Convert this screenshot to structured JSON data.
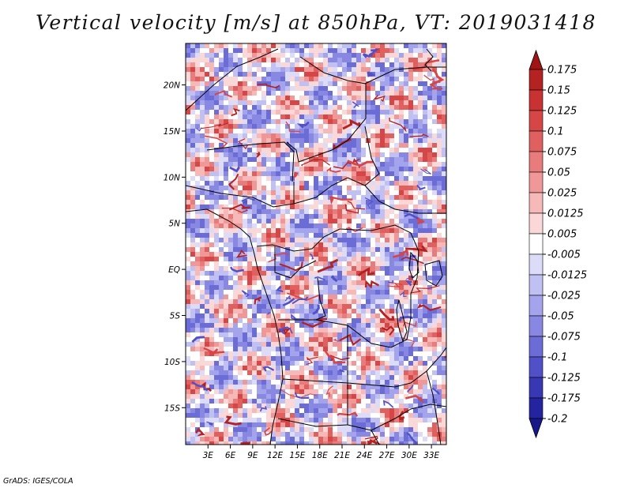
{
  "title": "Vertical velocity [m/s] at 850hPa, VT: 2019031418",
  "credit": "GrADS: IGES/COLA",
  "map": {
    "variable": "vertical velocity",
    "units": "m/s",
    "level": "850hPa",
    "valid_time": "2019031418",
    "lon_range": [
      0,
      35
    ],
    "lat_range": [
      -19,
      24.5
    ],
    "lat_ticks": [
      {
        "lat": 20,
        "label": "20N"
      },
      {
        "lat": 15,
        "label": "15N"
      },
      {
        "lat": 10,
        "label": "10N"
      },
      {
        "lat": 5,
        "label": "5N"
      },
      {
        "lat": 0,
        "label": "EQ"
      },
      {
        "lat": -5,
        "label": "5S"
      },
      {
        "lat": -10,
        "label": "10S"
      },
      {
        "lat": -15,
        "label": "15S"
      }
    ],
    "lon_ticks": [
      {
        "lon": 3,
        "label": "3E"
      },
      {
        "lon": 6,
        "label": "6E"
      },
      {
        "lon": 9,
        "label": "9E"
      },
      {
        "lon": 12,
        "label": "12E"
      },
      {
        "lon": 15,
        "label": "15E"
      },
      {
        "lon": 18,
        "label": "18E"
      },
      {
        "lon": 21,
        "label": "21E"
      },
      {
        "lon": 24,
        "label": "24E"
      },
      {
        "lon": 27,
        "label": "27E"
      },
      {
        "lon": 30,
        "label": "30E"
      },
      {
        "lon": 33,
        "label": "33E"
      }
    ]
  },
  "colorbar": {
    "levels": [
      "0.175",
      "0.15",
      "0.125",
      "0.1",
      "0.075",
      "0.05",
      "0.025",
      "0.0125",
      "0.005",
      "-0.005",
      "-0.0125",
      "-0.025",
      "-0.05",
      "-0.075",
      "-0.1",
      "-0.125",
      "-0.175",
      "-0.2"
    ],
    "colors": [
      "#a01414",
      "#b42222",
      "#c83232",
      "#d74646",
      "#e06060",
      "#e87c7c",
      "#f09898",
      "#f7b8b8",
      "#fbd8d8",
      "#ffffff",
      "#dcdcf8",
      "#c0c0f2",
      "#a4a4ec",
      "#8888e2",
      "#6c6cd6",
      "#5050c8",
      "#3838b4",
      "#2424a0",
      "#18188a"
    ]
  }
}
